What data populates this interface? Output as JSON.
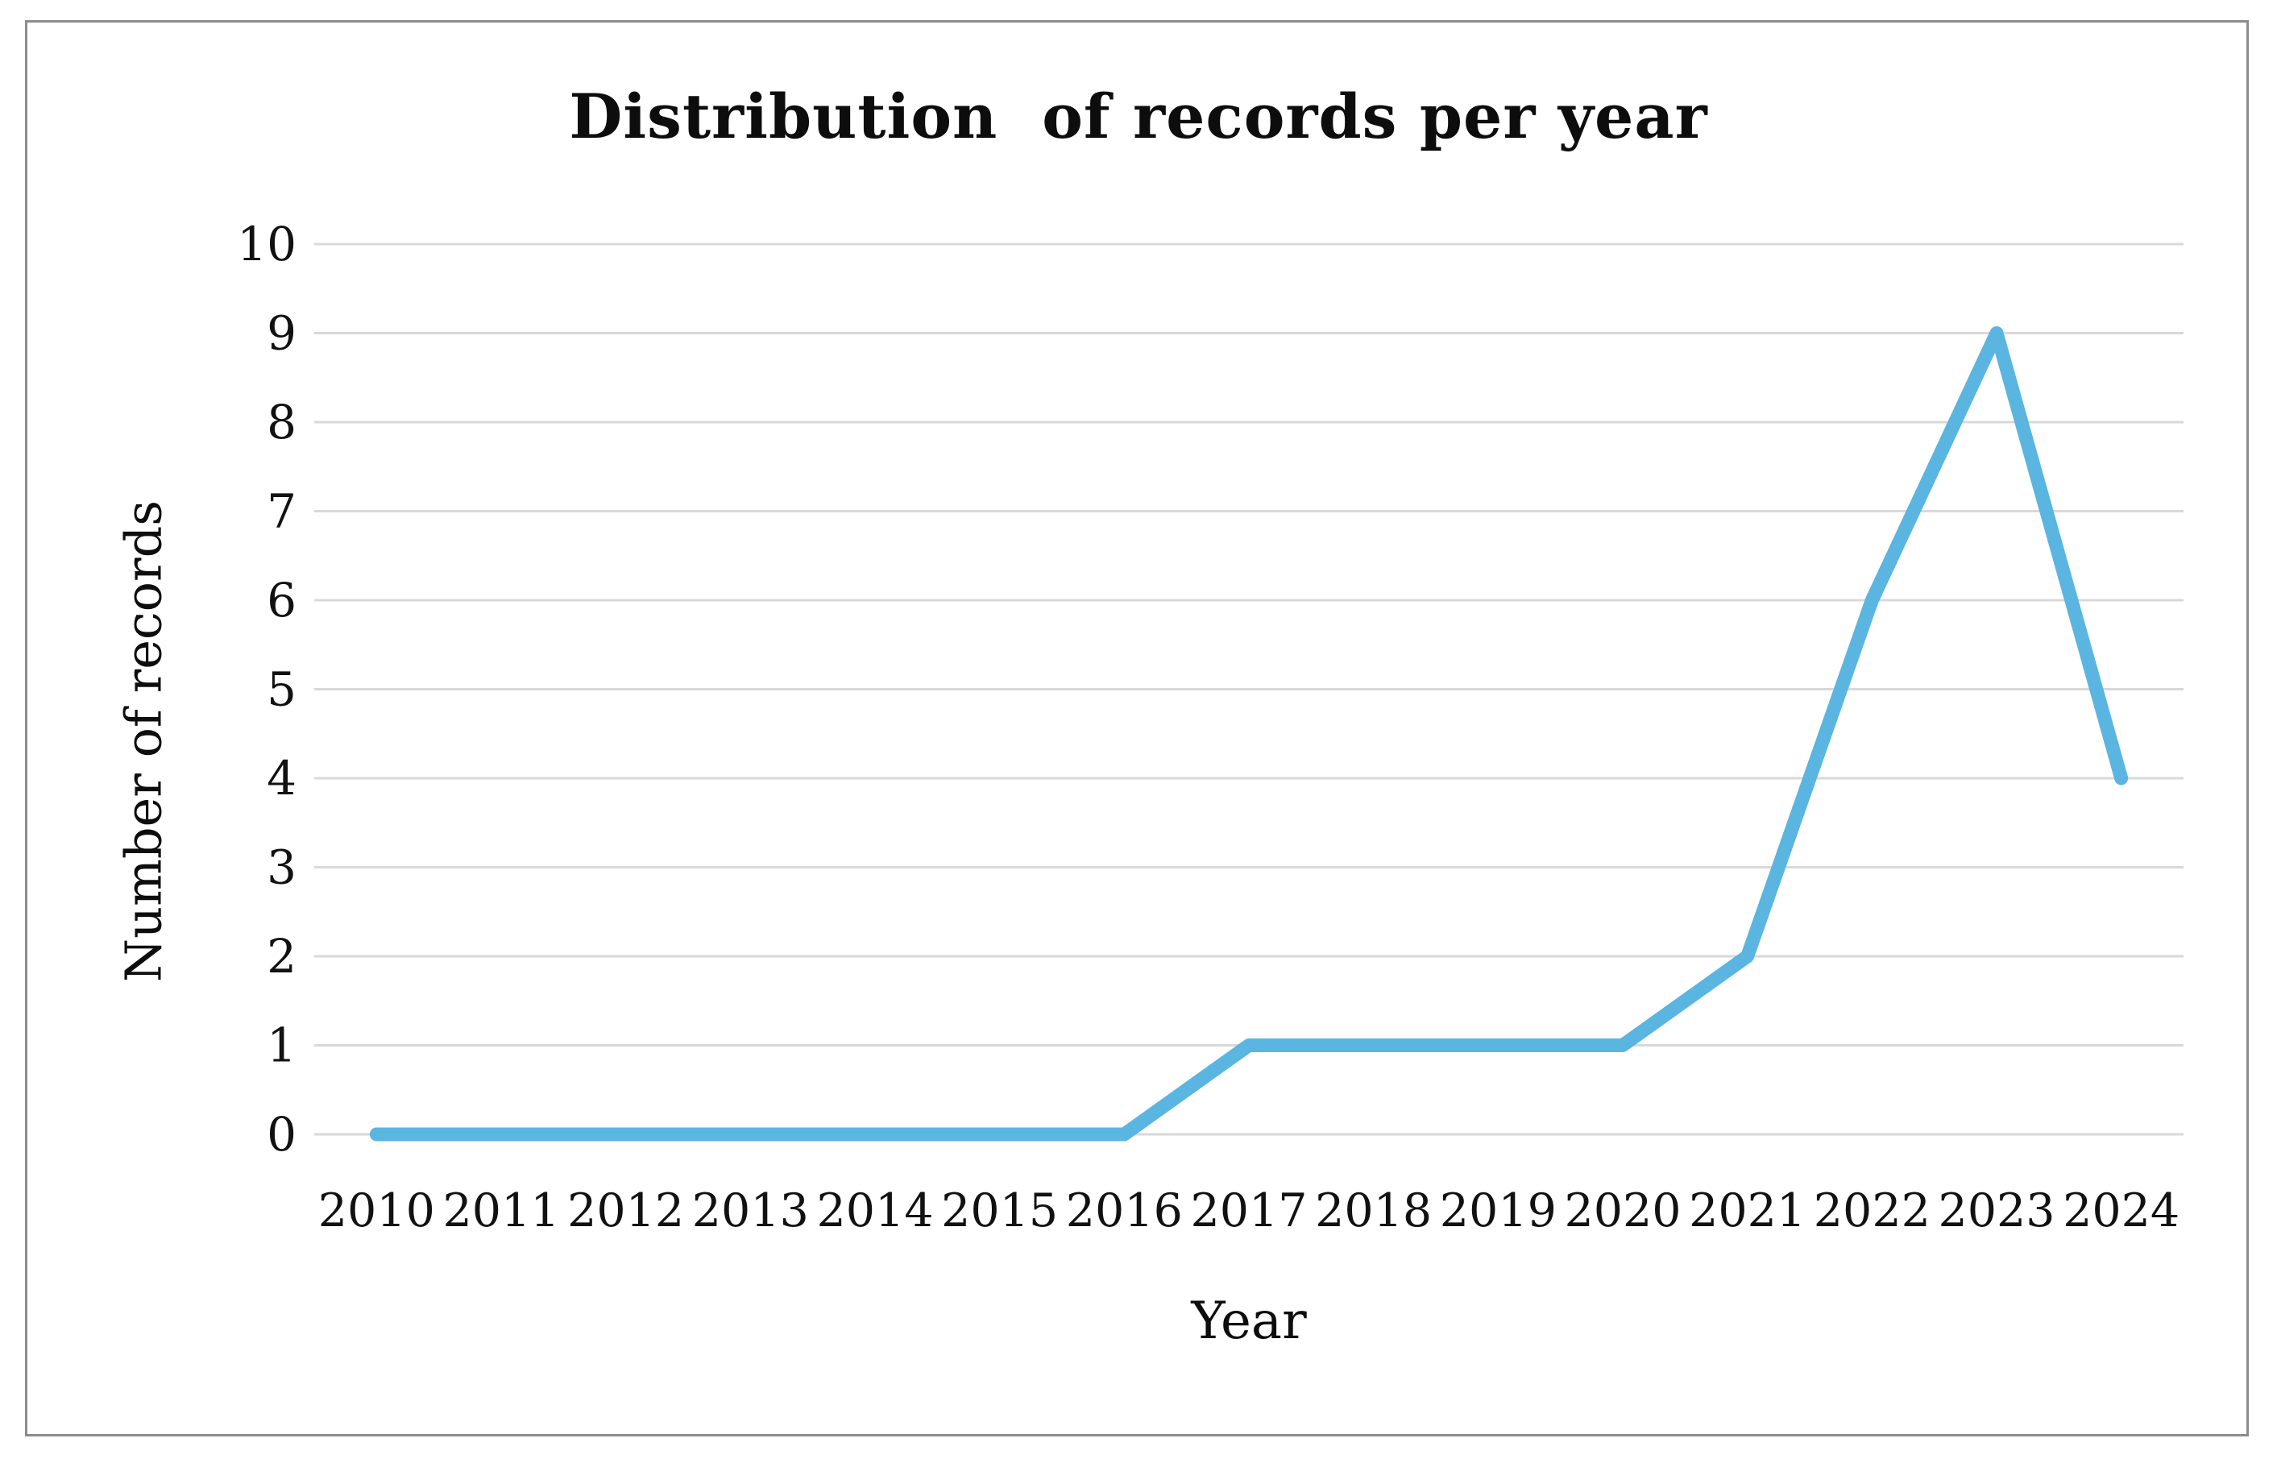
{
  "figure": {
    "title": "Distribution  of records per year",
    "x_axis_title": "Year",
    "y_axis_title": "Number of records"
  },
  "chart_data": {
    "type": "line",
    "title": "Distribution of records per year",
    "xlabel": "Year",
    "ylabel": "Number of records",
    "categories": [
      "2010",
      "2011",
      "2012",
      "2013",
      "2014",
      "2015",
      "2016",
      "2017",
      "2018",
      "2019",
      "2020",
      "2021",
      "2022",
      "2023",
      "2024"
    ],
    "values": [
      0,
      0,
      0,
      0,
      0,
      0,
      0,
      1,
      1,
      1,
      1,
      2,
      6,
      9,
      4
    ],
    "yticks": [
      0,
      1,
      2,
      3,
      4,
      5,
      6,
      7,
      8,
      9,
      10
    ],
    "ylim": [
      0,
      10
    ],
    "grid": "horizontal",
    "legend": "none",
    "line_color": "#5ab5e0",
    "gridline_color": "#d9d9d9",
    "frame_border_color": "#8c8c8c",
    "text_color": "#111111"
  }
}
